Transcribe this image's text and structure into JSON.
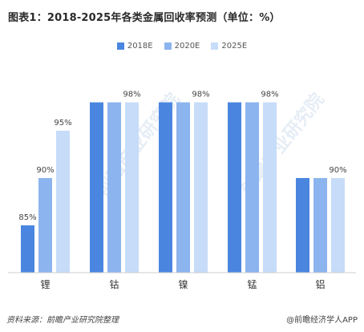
{
  "title": "图表1：2018-2025年各类金属回收率预测（单位：%）",
  "legend": {
    "s0": "2018E",
    "s1": "2020E",
    "s2": "2025E"
  },
  "watermark": "前瞻产业研究院",
  "footer": {
    "source": "资料来源：前瞻产业研究院整理",
    "brand": "@前瞻经济学人APP"
  },
  "colors": {
    "s0": "#4a86e0",
    "s1": "#8cb4ee",
    "s2": "#c6dcf8"
  },
  "chart_data": {
    "type": "bar",
    "categories": [
      "锂",
      "钴",
      "镍",
      "锰",
      "铝"
    ],
    "series": [
      {
        "name": "2018E",
        "values": [
          85,
          98,
          98,
          98,
          90
        ]
      },
      {
        "name": "2020E",
        "values": [
          90,
          98,
          98,
          98,
          90
        ]
      },
      {
        "name": "2025E",
        "values": [
          95,
          98,
          98,
          98,
          90
        ]
      }
    ],
    "data_labels": [
      [
        "85%",
        null,
        null,
        null,
        null
      ],
      [
        "90%",
        null,
        null,
        null,
        null
      ],
      [
        "95%",
        "98%",
        "98%",
        "98%",
        "90%"
      ]
    ],
    "ylim": [
      80,
      100
    ],
    "grid": false,
    "legend_position": "top"
  }
}
